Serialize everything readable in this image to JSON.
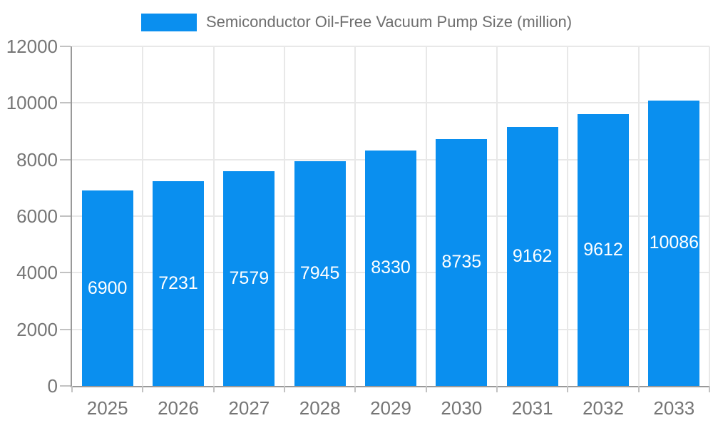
{
  "legend": {
    "label": "Semiconductor Oil-Free Vacuum Pump Size (million)"
  },
  "chart_data": {
    "type": "bar",
    "title": "Semiconductor Oil-Free Vacuum Pump Size (million)",
    "series_name": "Semiconductor Oil-Free Vacuum Pump Size (million)",
    "categories": [
      "2025",
      "2026",
      "2027",
      "2028",
      "2029",
      "2030",
      "2031",
      "2032",
      "2033"
    ],
    "values": [
      6900,
      7231,
      7579,
      7945,
      8330,
      8735,
      9162,
      9612,
      10086
    ],
    "xlabel": "",
    "ylabel": "",
    "ylim": [
      0,
      12000
    ],
    "yticks": [
      0,
      2000,
      4000,
      6000,
      8000,
      10000,
      12000
    ],
    "grid": true,
    "legend_position": "top-center",
    "data_labels_position": "inside-center"
  },
  "colors": {
    "bar": "#0a8fef",
    "grid": "#e8e8e8",
    "axis": "#999999",
    "tick": "#c2c2c2",
    "axis_text": "#757575",
    "legend_text": "#6e6e6e",
    "data_label_text": "#ffffff",
    "background": "#ffffff"
  }
}
